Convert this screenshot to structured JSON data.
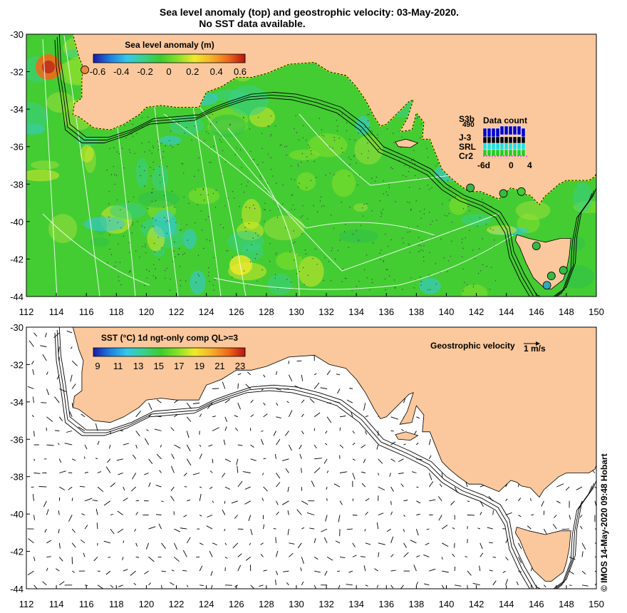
{
  "header": {
    "title_line1": "Sea level anomaly (top) and geostrophic velocity: 03-May-2020.",
    "title_line2": "No SST data available."
  },
  "top_panel": {
    "colorbar_title": "Sea level anomaly (m)",
    "colorbar_ticks": [
      "-0.6",
      "-0.4",
      "-0.2",
      "0",
      "0.2",
      "0.4",
      "0.6"
    ],
    "colorbar_colors": [
      "#1a1aa8",
      "#1f7fe0",
      "#34c9e8",
      "#39d08a",
      "#3ccd2c",
      "#86e02a",
      "#f0ea2a",
      "#f7b02a",
      "#ee6a1a",
      "#b8140e"
    ],
    "sea_color": "#44cc33",
    "land_color": "#fac89c",
    "data_count": {
      "title": "Data count",
      "satellites": [
        {
          "label": "S3b",
          "color": "#0000cc"
        },
        {
          "label": "J-3",
          "color": "#000000"
        },
        {
          "label": "SRL",
          "color": "#22dddd"
        },
        {
          "label": "Cr2",
          "color": "#22cc22"
        }
      ],
      "count_value": "490",
      "x_ticks": [
        "-6d",
        "0",
        "4"
      ]
    }
  },
  "bottom_panel": {
    "colorbar_title": "SST (°C) 1d ngt-only comp QL>=3",
    "colorbar_ticks": [
      "9",
      "11",
      "13",
      "15",
      "17",
      "19",
      "21",
      "23"
    ],
    "colorbar_colors": [
      "#1a1aa8",
      "#1f7fe0",
      "#34c9e8",
      "#39d08a",
      "#3ccd2c",
      "#86e02a",
      "#f0ea2a",
      "#f7b02a",
      "#ee6a1a",
      "#b8140e"
    ],
    "velocity_label": "Geostrophic velocity",
    "velocity_scale": "1 m/s",
    "land_color": "#fac89c"
  },
  "axes": {
    "lon_ticks": [
      "112",
      "114",
      "116",
      "118",
      "120",
      "122",
      "124",
      "126",
      "128",
      "130",
      "132",
      "134",
      "136",
      "138",
      "140",
      "142",
      "144",
      "146",
      "148",
      "150"
    ],
    "lat_ticks": [
      "-30",
      "-32",
      "-34",
      "-36",
      "-38",
      "-40",
      "-42",
      "-44"
    ],
    "lon_range": [
      112,
      150
    ],
    "lat_range": [
      -44,
      -30
    ]
  },
  "tide_gauges": [
    {
      "lon": 115.9,
      "lat": -31.9,
      "color": "#ee8844"
    },
    {
      "lon": 141.6,
      "lat": -38.2,
      "color": "#33bb44"
    },
    {
      "lon": 143.8,
      "lat": -38.5,
      "color": "#33bb44"
    },
    {
      "lon": 145.0,
      "lat": -38.4,
      "color": "#44cc33"
    },
    {
      "lon": 146.0,
      "lat": -41.3,
      "color": "#33bb44"
    },
    {
      "lon": 147.8,
      "lat": -42.6,
      "color": "#33bb44"
    },
    {
      "lon": 147.0,
      "lat": -42.9,
      "color": "#33bb44"
    },
    {
      "lon": 146.7,
      "lat": -43.4,
      "color": "#33aabb"
    }
  ],
  "side_credit": "© IMOS 14-May-2020 09:48 Hobart"
}
